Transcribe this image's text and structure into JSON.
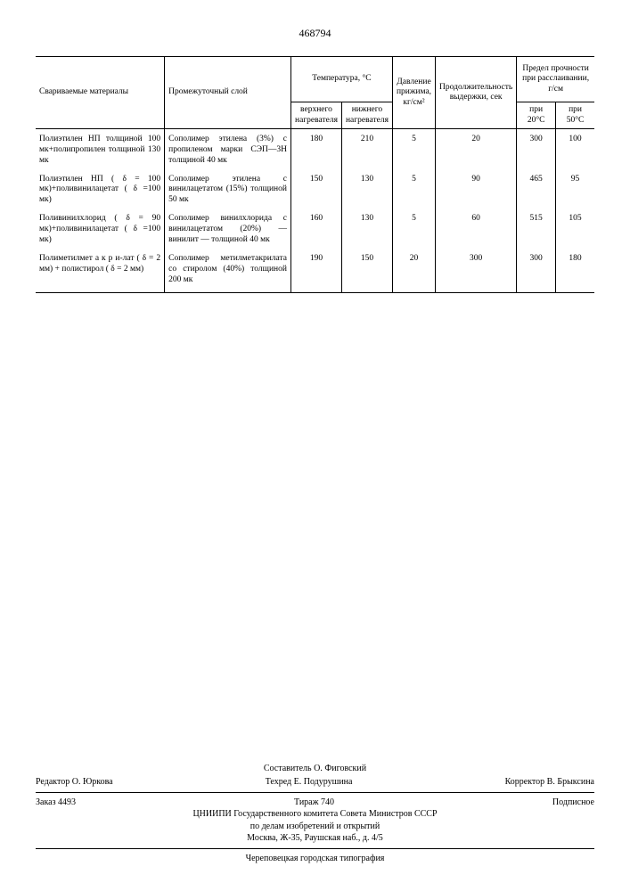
{
  "doc_number": "468794",
  "headers": {
    "materials": "Свариваемые материалы",
    "layer": "Промежуточный слой",
    "temp_group": "Температура, °С",
    "temp_upper": "верхнего нагревателя",
    "temp_lower": "нижнего нагревателя",
    "pressure": "Давление прижима, кг/см²",
    "duration": "Продолжительность выдержки, сек",
    "strength_group": "Предел прочности при расслаивании, г/см",
    "at20": "при 20°С",
    "at50": "при 50°С"
  },
  "rows": [
    {
      "mat": "Полиэтилен НП толщиной 100 мк+полипропилен толщиной 130 мк",
      "layer": "Сополимер этилена (3%) с пропиленом марки СЭП—3Н толщиной 40 мк",
      "t1": "180",
      "t2": "210",
      "p": "5",
      "d": "20",
      "s20": "300",
      "s50": "100"
    },
    {
      "mat": "Полиэтилен НП ( δ = 100 мк)+поливинилацетат ( δ =100 мк)",
      "layer": "Сополимер этилена с винилацетатом (15%) толщиной 50 мк",
      "t1": "150",
      "t2": "130",
      "p": "5",
      "d": "90",
      "s20": "465",
      "s50": "95"
    },
    {
      "mat": "Поливинилхлорид ( δ = 90 мк)+поливинилацетат ( δ =100 мк)",
      "layer": "Сополимер винилхлорида с винилацетатом (20%) — винилит — толщиной 40 мк",
      "t1": "160",
      "t2": "130",
      "p": "5",
      "d": "60",
      "s20": "515",
      "s50": "105"
    },
    {
      "mat": "Полиметилмет а к р и-лат ( δ = 2 мм) + полистирол ( δ = 2 мм)",
      "layer": "Сополимер метилметакрилата со стиролом (40%) толщиной 200 мк",
      "t1": "190",
      "t2": "150",
      "p": "20",
      "d": "300",
      "s20": "300",
      "s50": "180"
    }
  ],
  "footer": {
    "compiler": "Составитель О. Фиговский",
    "editor": "Редактор О. Юркова",
    "techred": "Техред Е. Подурушина",
    "corrector": "Корректор В. Брыксина",
    "order": "Заказ 4493",
    "tirage": "Тираж 740",
    "sub": "Подписное",
    "org": "ЦНИИПИ Государственного комитета Совета Министров СССР",
    "dept": "по делам изобретений и открытий",
    "addr": "Москва, Ж-35, Раушская наб., д. 4/5",
    "print": "Череповецкая городская типография"
  }
}
